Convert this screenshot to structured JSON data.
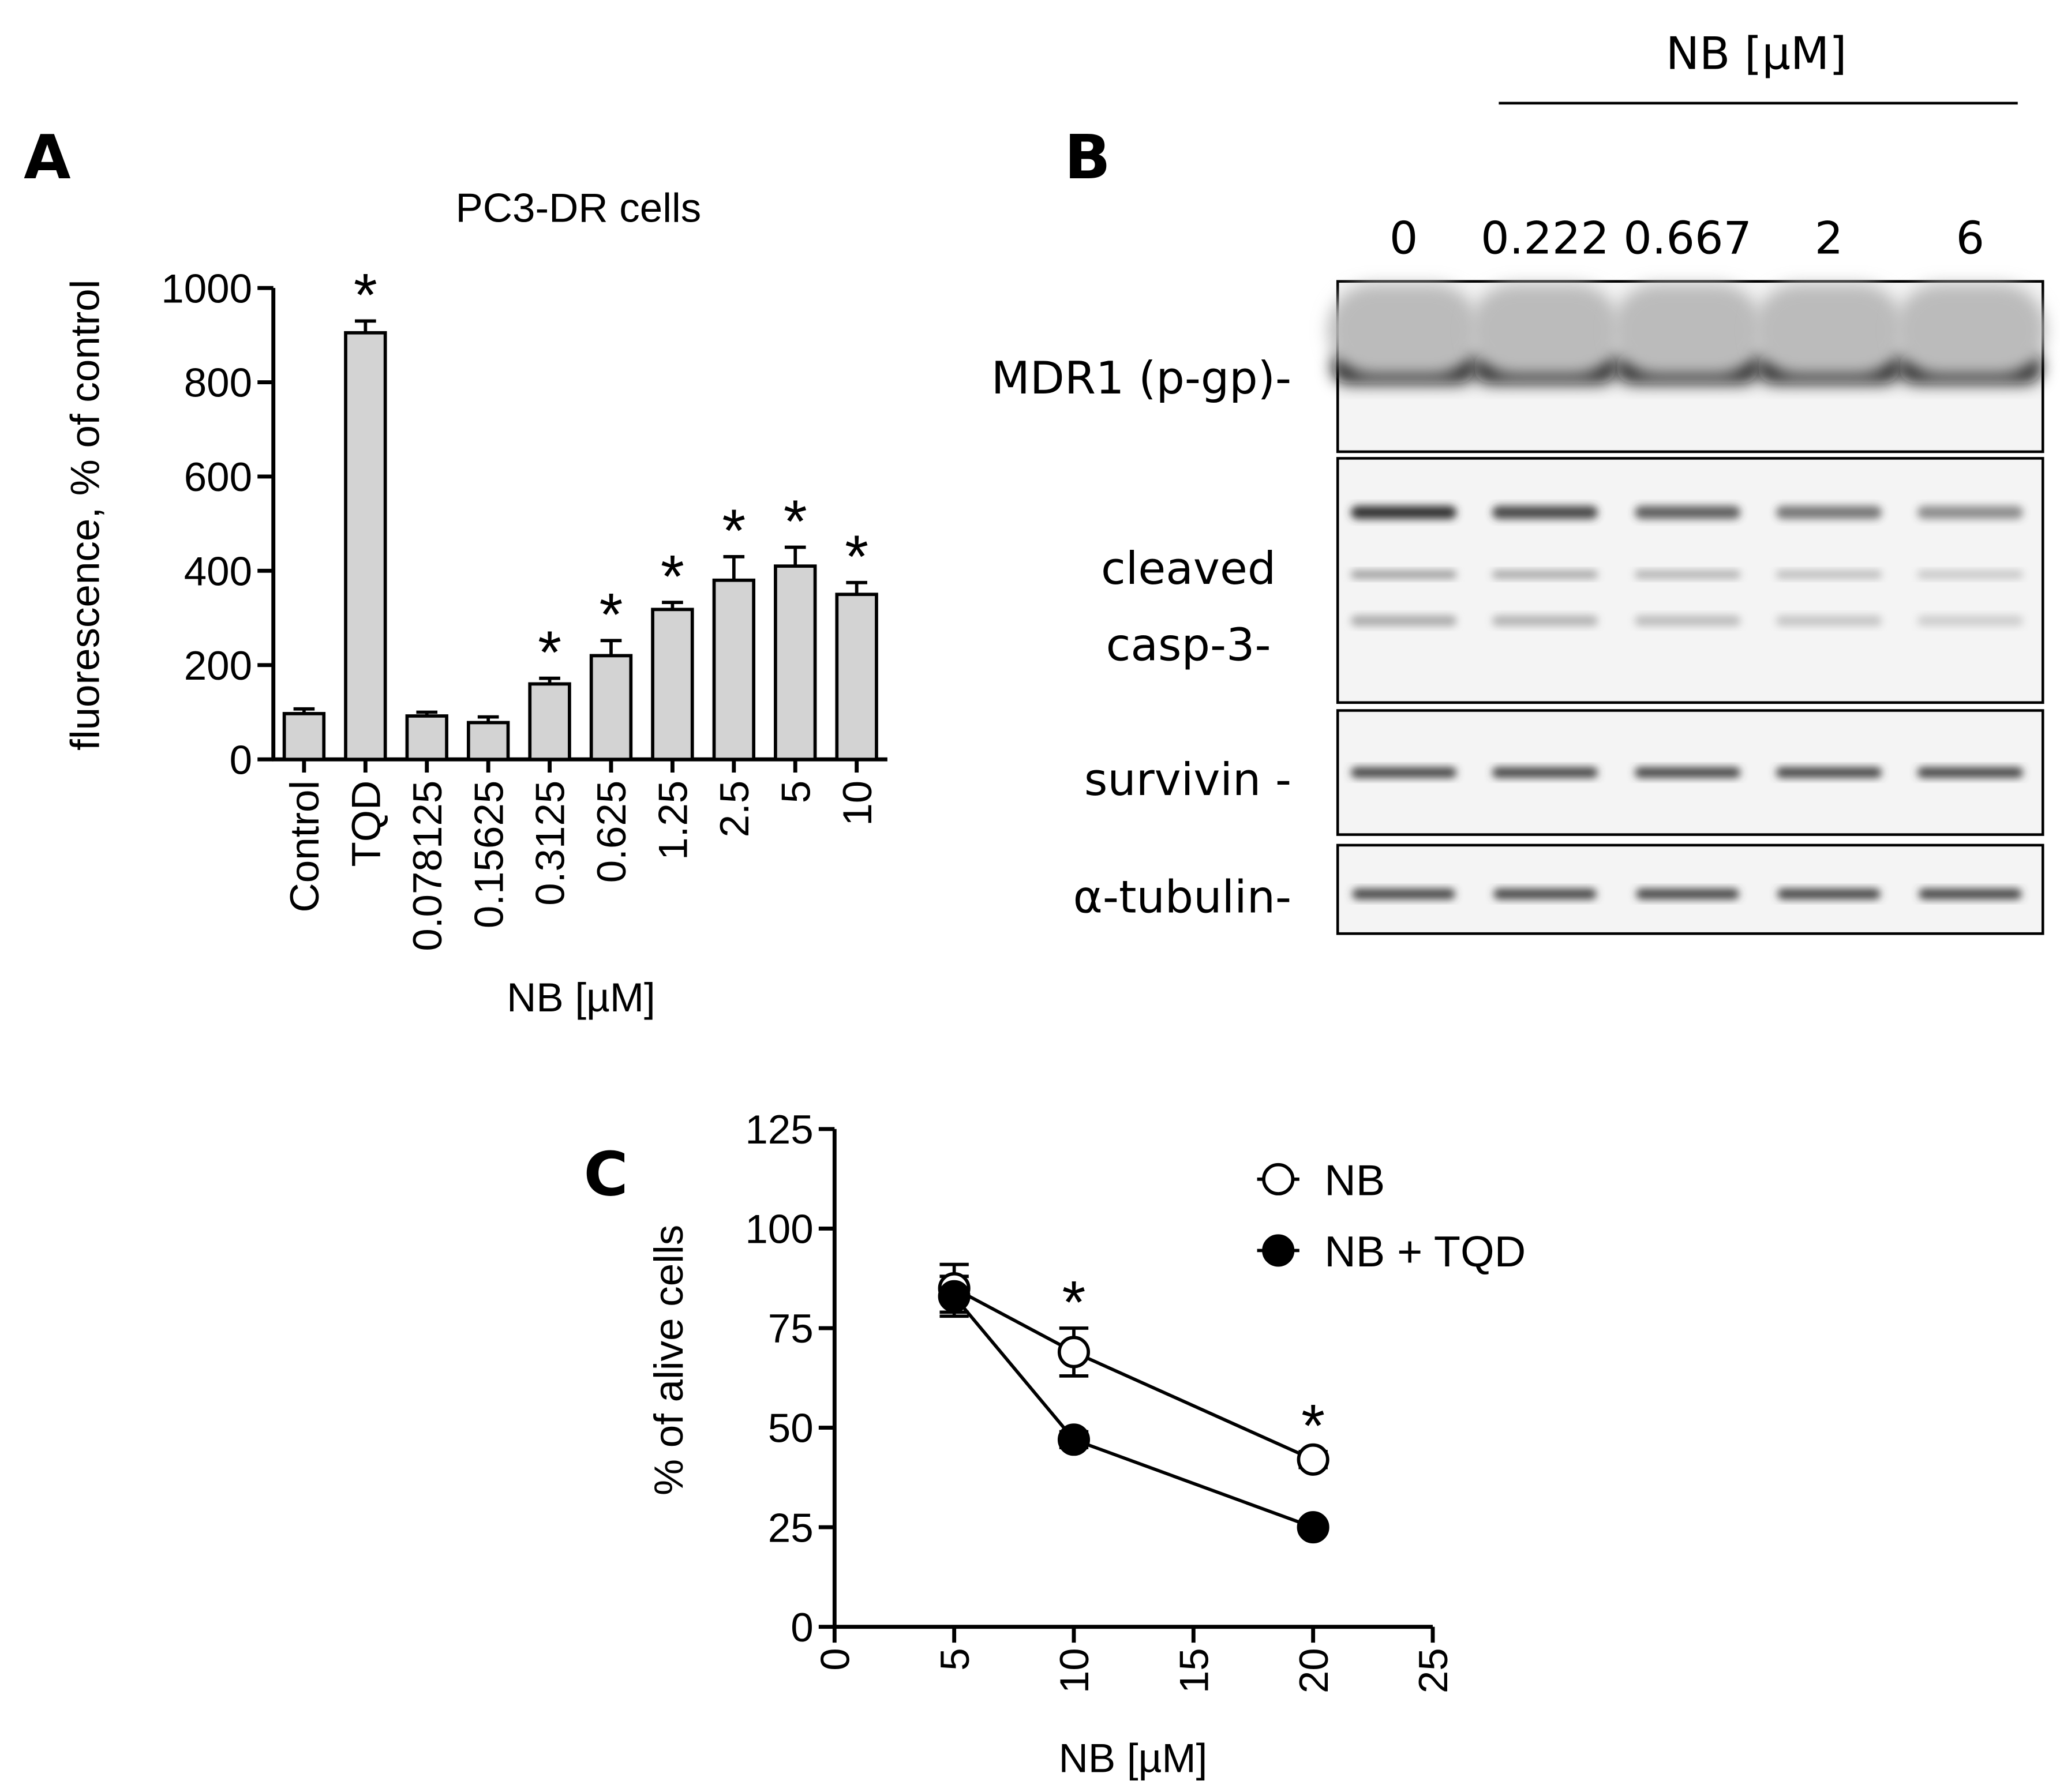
{
  "chart_data": [
    {
      "type": "bar",
      "panel": "A",
      "title": "PC3-DR cells",
      "y_label": "fluorescence, % of control",
      "x_label": "NB [µM]",
      "categories": [
        "Control",
        "TQD",
        "0.078125",
        "0.15625",
        "0.3125",
        "0.625",
        "1.25",
        "2.5",
        "5",
        "10"
      ],
      "values": [
        97,
        905,
        92,
        78,
        160,
        220,
        318,
        380,
        410,
        350
      ],
      "errors": [
        10,
        25,
        8,
        12,
        12,
        32,
        15,
        50,
        40,
        25
      ],
      "significance": [
        null,
        "*",
        null,
        null,
        "*",
        "*",
        "*",
        "*",
        "*",
        "*"
      ],
      "color": "#d3d3d3",
      "ylim": [
        0,
        1000
      ],
      "yticks": [
        0,
        200,
        400,
        600,
        800,
        1000
      ]
    },
    {
      "type": "line",
      "panel": "C",
      "y_label": "% of alive cells",
      "x_label": "NB [µM]",
      "x": [
        5,
        10,
        20
      ],
      "series": [
        {
          "name": "NB",
          "color": "#000000",
          "fill": "#ffffff",
          "values": [
            85,
            69,
            42
          ],
          "errors": [
            6,
            6,
            2
          ],
          "significance": [
            null,
            "*",
            "*"
          ]
        },
        {
          "name": "NB + TQD",
          "color": "#000000",
          "fill": "#000000",
          "values": [
            83,
            47,
            25
          ],
          "errors": [
            5,
            2,
            1
          ]
        }
      ],
      "xlim": [
        0,
        25
      ],
      "xticks": [
        0,
        5,
        10,
        15,
        20,
        25
      ],
      "ylim": [
        0,
        125
      ],
      "yticks": [
        0,
        25,
        50,
        75,
        100,
        125
      ]
    }
  ],
  "blot": {
    "panel": "B",
    "header": "NB [µM]",
    "lanes": [
      "0",
      "0.222",
      "0.667",
      "2",
      "6"
    ],
    "rows": [
      [
        "MDR1 (p-gp)-"
      ],
      [
        "cleaved",
        "casp-3-"
      ],
      [
        "survivin -"
      ],
      [
        "α-tubulin-"
      ]
    ]
  }
}
